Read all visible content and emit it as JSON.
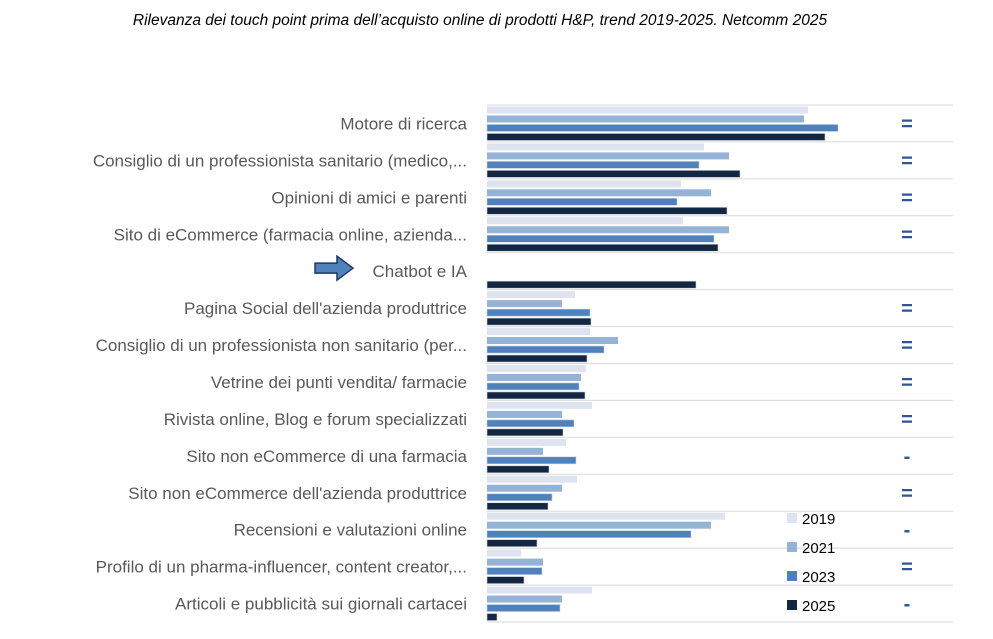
{
  "chart_data": {
    "type": "bar",
    "orientation": "horizontal",
    "title": "Rilevanza dei touch point prima dell’acquisto online di prodotti H&P, trend 2019-2025. Netcomm 2025",
    "xlabel": "",
    "ylabel": "",
    "value_units": "relative (no axis shown)",
    "xlim": [
      0,
      360
    ],
    "grid": true,
    "legend_position": "bottom-right",
    "categories": [
      "Motore di ricerca",
      "Consiglio di un professionista sanitario (medico,...",
      "Opinioni di amici e parenti",
      "Sito di eCommerce (farmacia online, azienda...",
      "Chatbot e IA",
      "Pagina Social dell'azienda produttrice",
      "Consiglio di un professionista non sanitario (per...",
      "Vetrine dei punti vendita/ farmacie",
      "Rivista online, Blog e forum specializzati",
      "Sito non eCommerce di una farmacia",
      "Sito non eCommerce dell'azienda produttrice",
      "Recensioni e valutazioni online",
      "Profilo di un pharma-influencer, content creator,...",
      "Articoli e pubblicità sui giornali cartacei"
    ],
    "series": [
      {
        "name": "2019",
        "color": "#dde4f0",
        "values": [
          321,
          217,
          194,
          196,
          null,
          88,
          103,
          99,
          105,
          79,
          90,
          238,
          34,
          105
        ]
      },
      {
        "name": "2021",
        "color": "#95b3d7",
        "values": [
          317,
          242,
          224,
          242,
          null,
          75,
          131,
          94,
          75,
          56,
          75,
          224,
          56,
          75
        ]
      },
      {
        "name": "2023",
        "color": "#4f81bd",
        "values": [
          351,
          212,
          190,
          227,
          null,
          103,
          117,
          92,
          87,
          89,
          65,
          204,
          55,
          73
        ]
      },
      {
        "name": "2025",
        "color": "#132743",
        "values": [
          338,
          253,
          240,
          231,
          209,
          104,
          100,
          98,
          76,
          62,
          61,
          50,
          37,
          10
        ]
      }
    ],
    "trend_markers": [
      "=",
      "=",
      "=",
      "=",
      "",
      "=",
      "=",
      "=",
      "=",
      "-",
      "=",
      "-",
      "=",
      "-"
    ],
    "highlight_arrow_category": "Chatbot e IA"
  }
}
